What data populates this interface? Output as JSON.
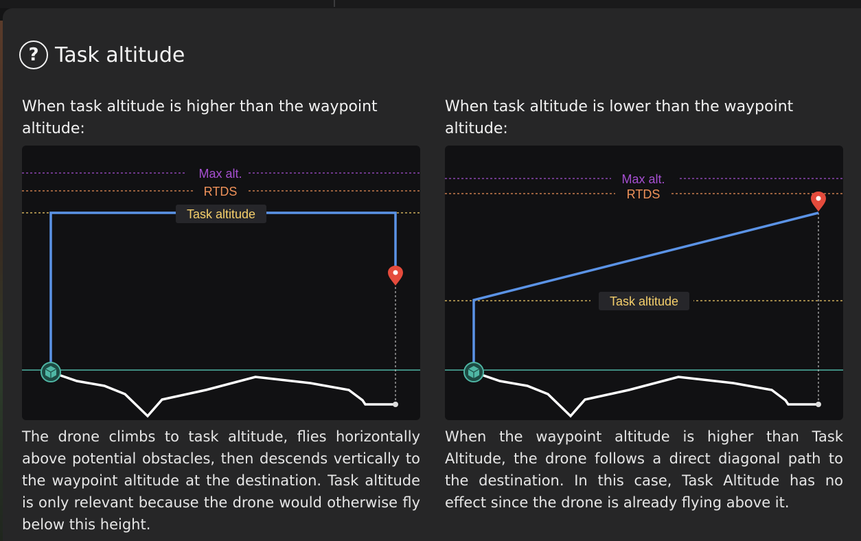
{
  "header": {
    "help_icon": "question-circle-icon",
    "help_glyph": "?",
    "title": "Task altitude"
  },
  "left": {
    "heading": "When task altitude is higher than the waypoint altitude:",
    "labels": {
      "max_alt": "Max alt.",
      "rtds": "RTDS",
      "task_altitude": "Task altitude"
    },
    "description": "The drone climbs to task altitude, flies horizontally above potential obstacles, then descends vertically to the waypoint altitude at the destination. Task altitude is only relevant because the drone would otherwise fly below this height."
  },
  "right": {
    "heading": "When task altitude is lower than the waypoint altitude:",
    "labels": {
      "max_alt": "Max alt.",
      "rtds": "RTDS",
      "task_altitude": "Task altitude"
    },
    "description": "When the waypoint altitude is higher than Task Altitude, the drone follows a direct diagonal path to the destination. In this case, Task Altitude has no effect since the drone is already flying above it."
  },
  "colors": {
    "max_alt": "#a64fd1",
    "rtds": "#f0925a",
    "task_altitude": "#f5cf6b",
    "flight_path": "#5b93e6",
    "ground_line": "#4fb6a4",
    "terrain": "#ffffff",
    "waypoint_pin": "#e54b3c",
    "home_marker": "#3a9e8c"
  },
  "icons": {
    "home": "home-drone-icon",
    "waypoint": "waypoint-pin-icon"
  }
}
